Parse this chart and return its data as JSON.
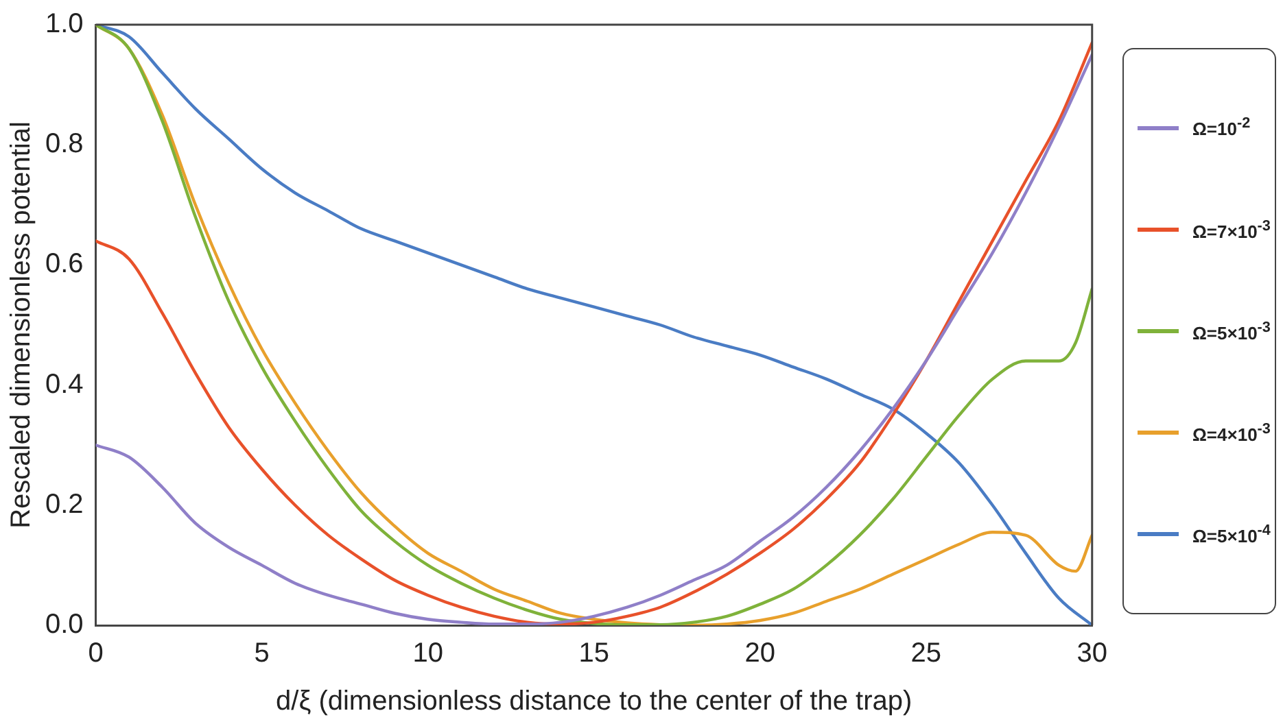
{
  "chart_data": {
    "type": "line",
    "xlabel": "d/ξ (dimensionless distance to the center of the trap)",
    "ylabel": "Rescaled dimensionless potential",
    "xlim": [
      0,
      30
    ],
    "xticks": [
      0,
      5,
      10,
      15,
      20,
      25,
      30
    ],
    "ylim": [
      0,
      1
    ],
    "yticks": [
      {
        "value": 0,
        "label": "0.0"
      },
      0.2,
      0.4,
      0.6,
      0.8,
      {
        "value": 1,
        "label": "1.0"
      }
    ],
    "grid": false,
    "legend": "right",
    "marker": "none",
    "line_style": "solid",
    "series": [
      {
        "name": "Ω=10$^{-2}$",
        "color": "#8f7fc8",
        "x": [
          0,
          1,
          2,
          3,
          4,
          5,
          6,
          7,
          8,
          9,
          10,
          11,
          12,
          13,
          14,
          15,
          16,
          17,
          18,
          19,
          20,
          21,
          22,
          23,
          24,
          25,
          26,
          27,
          28,
          29,
          30
        ],
        "values": [
          0.3,
          0.28,
          0.23,
          0.17,
          0.13,
          0.1,
          0.07,
          0.05,
          0.035,
          0.02,
          0.01,
          0.005,
          0.002,
          0.002,
          0.005,
          0.015,
          0.03,
          0.05,
          0.075,
          0.1,
          0.14,
          0.18,
          0.23,
          0.29,
          0.36,
          0.44,
          0.53,
          0.62,
          0.72,
          0.83,
          0.95
        ]
      },
      {
        "name": "Ω=7×10$^{-3}$",
        "color": "#e8512a",
        "x": [
          0,
          1,
          2,
          3,
          4,
          5,
          6,
          7,
          8,
          9,
          10,
          11,
          12,
          13,
          14,
          15,
          16,
          17,
          18,
          19,
          20,
          21,
          22,
          23,
          24,
          25,
          26,
          27,
          28,
          29,
          30
        ],
        "values": [
          0.64,
          0.61,
          0.52,
          0.42,
          0.33,
          0.26,
          0.2,
          0.15,
          0.11,
          0.075,
          0.05,
          0.03,
          0.015,
          0.005,
          0.002,
          0.005,
          0.015,
          0.03,
          0.055,
          0.085,
          0.12,
          0.16,
          0.21,
          0.27,
          0.35,
          0.44,
          0.54,
          0.64,
          0.74,
          0.84,
          0.97
        ]
      },
      {
        "name": "Ω=5×10$^{-3}$",
        "color": "#7fb23a",
        "x": [
          0,
          1,
          2,
          3,
          4,
          5,
          6,
          7,
          8,
          9,
          10,
          11,
          12,
          13,
          14,
          15,
          16,
          17,
          18,
          19,
          20,
          21,
          22,
          23,
          24,
          25,
          26,
          27,
          28,
          29,
          29.5,
          30
        ],
        "values": [
          1,
          0.96,
          0.84,
          0.68,
          0.54,
          0.43,
          0.34,
          0.26,
          0.19,
          0.14,
          0.1,
          0.07,
          0.045,
          0.025,
          0.01,
          0.003,
          0.001,
          0.001,
          0.005,
          0.015,
          0.035,
          0.06,
          0.1,
          0.15,
          0.21,
          0.28,
          0.35,
          0.41,
          0.44,
          0.44,
          0.47,
          0.56
        ]
      },
      {
        "name": "Ω=4×10$^{-3}$",
        "color": "#e8a02c",
        "x": [
          0,
          1,
          2,
          3,
          4,
          5,
          6,
          7,
          8,
          9,
          10,
          11,
          12,
          13,
          14,
          15,
          16,
          17,
          18,
          19,
          20,
          21,
          22,
          23,
          24,
          25,
          26,
          27,
          28,
          29,
          29.5,
          30
        ],
        "values": [
          1,
          0.96,
          0.85,
          0.7,
          0.57,
          0.46,
          0.37,
          0.29,
          0.22,
          0.165,
          0.12,
          0.09,
          0.06,
          0.04,
          0.02,
          0.01,
          0.004,
          0.001,
          0,
          0.002,
          0.008,
          0.02,
          0.04,
          0.06,
          0.085,
          0.11,
          0.135,
          0.155,
          0.15,
          0.1,
          0.09,
          0.15
        ]
      },
      {
        "name": "Ω=5×10$^{-4}$",
        "color": "#4a7cc4",
        "x": [
          0,
          1,
          2,
          3,
          4,
          5,
          6,
          7,
          8,
          9,
          10,
          11,
          12,
          13,
          14,
          15,
          16,
          17,
          18,
          19,
          20,
          21,
          22,
          23,
          24,
          25,
          26,
          27,
          28,
          29,
          30
        ],
        "values": [
          1,
          0.98,
          0.92,
          0.86,
          0.81,
          0.76,
          0.72,
          0.69,
          0.66,
          0.64,
          0.62,
          0.6,
          0.58,
          0.56,
          0.545,
          0.53,
          0.515,
          0.5,
          0.48,
          0.465,
          0.45,
          0.43,
          0.41,
          0.385,
          0.36,
          0.32,
          0.27,
          0.2,
          0.12,
          0.045,
          0
        ]
      }
    ]
  }
}
